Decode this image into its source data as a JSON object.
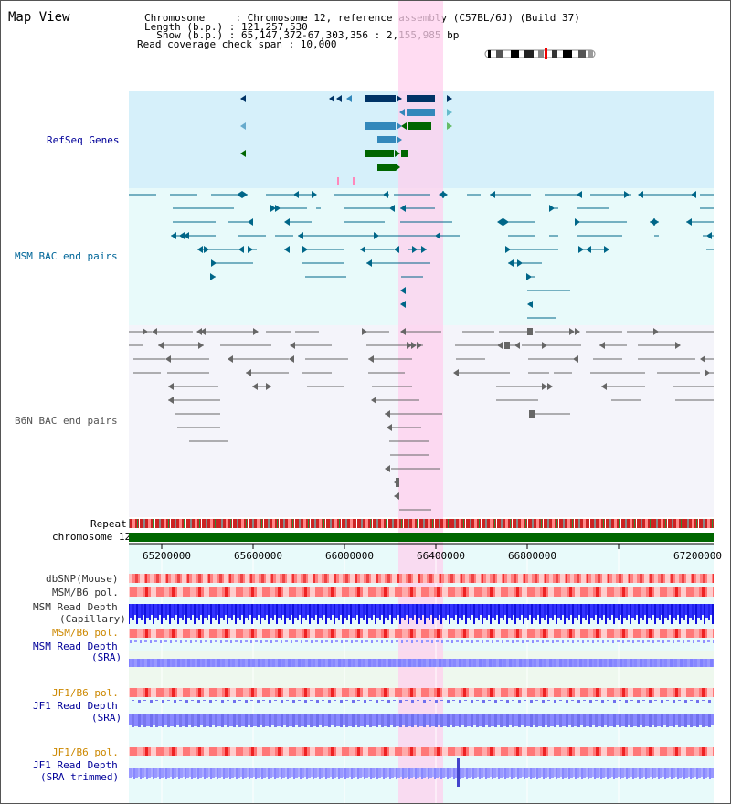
{
  "view_title": "Map View",
  "info": {
    "chromosome": "Chromosome     : Chromosome 12, reference assembly (C57BL/6J) (Build 37)",
    "length": "Length (b.p.) : 121,257,530",
    "show": "  Show (b.p.) : 65,147,372-67,303,356 : 2,155,985 bp",
    "coverage": "Read coverage check span : 10,000"
  },
  "tracks": {
    "refseq": "RefSeq Genes",
    "msm_bac": "MSM BAC end pairs",
    "b6n_bac": "B6N BAC end pairs",
    "repeat": "Repeat",
    "chromosome": "chromosome 12",
    "dbsnp": "dbSNP(Mouse)",
    "msm_pol": "MSM/B6 pol.",
    "msm_depth_cap_1": "MSM Read Depth",
    "msm_depth_cap_2": "(Capillary)",
    "msm_pol2": "MSM/B6 pol.",
    "msm_depth_sra_1": "MSM Read Depth",
    "msm_depth_sra_2": "(SRA)",
    "jf1_pol": "JF1/B6 pol.",
    "jf1_depth_sra_1": "JF1 Read Depth",
    "jf1_depth_sra_2": "(SRA)",
    "jf1_pol2": "JF1/B6 pol.",
    "jf1_trim_1": "JF1 Read Depth",
    "jf1_trim_2": "(SRA trimmed)"
  },
  "axis_ticks": [
    "65200000",
    "65600000",
    "66000000",
    "66400000",
    "66800000",
    "67200000"
  ],
  "colors": {
    "refseq_bg": "#d6f0fa",
    "msm_bg": "#e8fafa",
    "b6n_bg": "#f4f4fa",
    "highlight": "#ffd0ee",
    "refseq_label": "#000099",
    "msm_label": "#006699",
    "b6n_label": "#555555",
    "pol_orange": "#cc8800",
    "depth_blue": "#2222ee",
    "depth_lavender": "#8888ff",
    "chrom_green": "#006600",
    "gene_navy": "#003366",
    "gene_teal": "#3388bb",
    "gene_green": "#006600"
  }
}
